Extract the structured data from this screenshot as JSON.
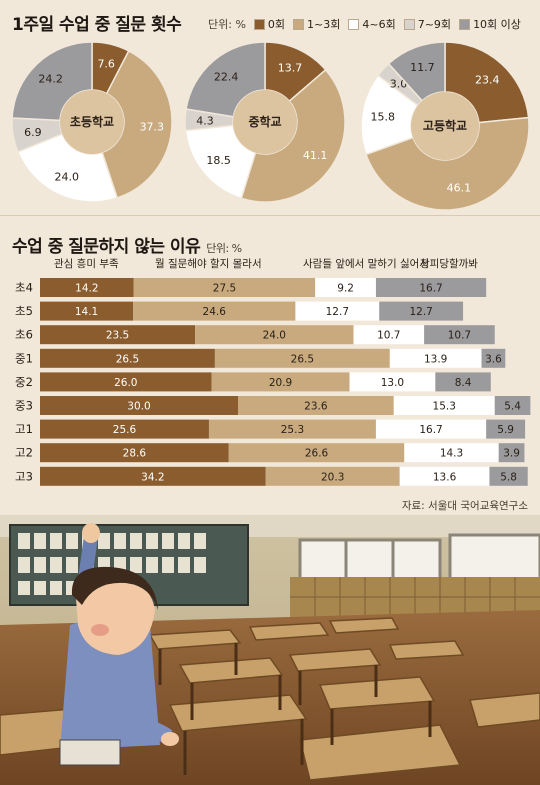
{
  "colors": {
    "c0": "#8a5c2e",
    "c1_3": "#c9aa7e",
    "c4_6": "#ffffff",
    "c7_9": "#d8d3cc",
    "c10": "#9b9b9e",
    "center": "#dcc4a0",
    "background": "#f1e8da"
  },
  "pies": {
    "title": "1주일 수업 중 질문 횟수",
    "unit": "단위: %",
    "legend": [
      {
        "label": "0회",
        "color": "#8a5c2e"
      },
      {
        "label": "1~3회",
        "color": "#c9aa7e"
      },
      {
        "label": "4~6회",
        "color": "#ffffff"
      },
      {
        "label": "7~9회",
        "color": "#d8d3cc"
      },
      {
        "label": "10회 이상",
        "color": "#9b9b9e"
      }
    ]
  },
  "bars": {
    "title": "수업 중 질문하지 않는 이유",
    "unit": "단위: %",
    "column_labels": [
      "관심 흥미 부족",
      "뭘 질문해야 할지 몰라서",
      "사람들 앞에서 말하기 싫어서",
      "창피당할까봐"
    ],
    "source": "자료: 서울대 국어교육연구소"
  },
  "chart_data": [
    {
      "type": "pie",
      "center_label": "초등학교",
      "categories": [
        "0회",
        "1~3회",
        "4~6회",
        "7~9회",
        "10회 이상"
      ],
      "values": [
        7.6,
        37.3,
        24.0,
        6.9,
        24.2
      ],
      "value_labels": [
        "7.6",
        "37.3",
        "24.0",
        "6.9",
        "24.2"
      ]
    },
    {
      "type": "pie",
      "center_label": "중학교",
      "categories": [
        "0회",
        "1~3회",
        "4~6회",
        "7~9회",
        "10회 이상"
      ],
      "values": [
        13.7,
        41.1,
        18.5,
        4.3,
        22.4
      ],
      "value_labels": [
        "13.7",
        "41.1",
        "18.5",
        "4.3",
        "22.4"
      ]
    },
    {
      "type": "pie",
      "center_label": "고등학교",
      "categories": [
        "0회",
        "1~3회",
        "4~6회",
        "7~9회",
        "10회 이상"
      ],
      "values": [
        23.4,
        46.1,
        15.8,
        3.0,
        11.7
      ],
      "value_labels": [
        "23.4",
        "46.1",
        "15.8",
        "3.0",
        "11.7"
      ]
    },
    {
      "type": "bar",
      "orientation": "horizontal",
      "stacked": true,
      "categories": [
        "초4",
        "초5",
        "초6",
        "중1",
        "중2",
        "중3",
        "고1",
        "고2",
        "고3"
      ],
      "series": [
        {
          "name": "관심 흥미 부족",
          "values": [
            14.2,
            14.1,
            23.5,
            26.5,
            26.0,
            30.0,
            25.6,
            28.6,
            34.2
          ],
          "labels": [
            "14.2",
            "14.1",
            "23.5",
            "26.5",
            "26.0",
            "30.0",
            "25.6",
            "28.6",
            "34.2"
          ]
        },
        {
          "name": "뭘 질문해야 할지 몰라서",
          "values": [
            27.5,
            24.6,
            24.0,
            26.5,
            20.9,
            23.6,
            25.3,
            26.6,
            20.3
          ],
          "labels": [
            "27.5",
            "24.6",
            "24.0",
            "26.5",
            "20.9",
            "23.6",
            "25.3",
            "26.6",
            "20.3"
          ]
        },
        {
          "name": "사람들 앞에서 말하기 싫어서",
          "values": [
            9.2,
            12.7,
            10.7,
            13.9,
            13.0,
            15.3,
            16.7,
            14.3,
            13.6
          ],
          "labels": [
            "9.2",
            "12.7",
            "10.7",
            "13.9",
            "13.0",
            "15.3",
            "16.7",
            "14.3",
            "13.6"
          ]
        },
        {
          "name": "창피당할까봐",
          "values": [
            16.7,
            12.7,
            10.7,
            3.6,
            8.4,
            5.4,
            5.9,
            3.9,
            5.8
          ],
          "labels": [
            "16.7",
            "12.7",
            "10.7",
            "3.6",
            "8.4",
            "5.4",
            "5.9",
            "3.9",
            "5.8"
          ]
        }
      ]
    }
  ]
}
